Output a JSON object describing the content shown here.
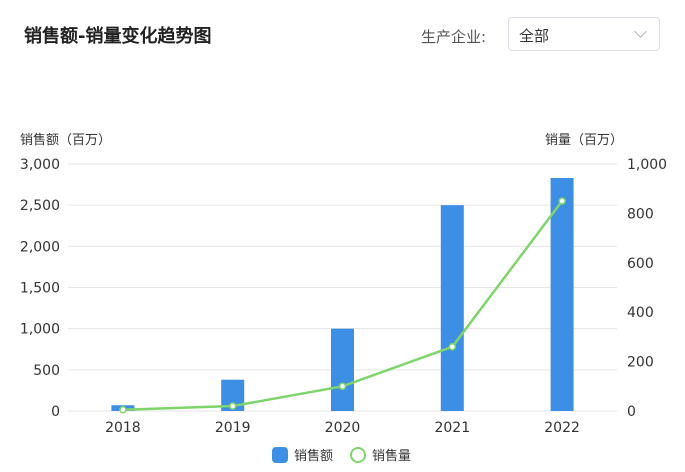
{
  "header": {
    "title": "销售额-销量变化趋势图",
    "filter_label": "生产企业:",
    "filter_value": "全部"
  },
  "chart_data": {
    "type": "bar",
    "title": "销售额-销量变化趋势图",
    "categories": [
      "2018",
      "2019",
      "2020",
      "2021",
      "2022"
    ],
    "series": [
      {
        "name": "销售额",
        "type": "bar",
        "axis": "left",
        "color": "#3d8fe6",
        "values": [
          70,
          380,
          1000,
          2500,
          2830
        ]
      },
      {
        "name": "销售量",
        "type": "line",
        "axis": "right",
        "color": "#7fd46b",
        "values": [
          5,
          20,
          100,
          260,
          850
        ]
      }
    ],
    "y_left": {
      "label": "销售额（百万）",
      "ylim": [
        0,
        3000
      ],
      "ticks": [
        "0",
        "500",
        "1,000",
        "1,500",
        "2,000",
        "2,500",
        "3,000"
      ],
      "tick_values": [
        0,
        500,
        1000,
        1500,
        2000,
        2500,
        3000
      ]
    },
    "y_right": {
      "label": "销量（百万）",
      "ylim": [
        0,
        1000
      ],
      "ticks": [
        "0",
        "200",
        "400",
        "600",
        "800",
        "1,000"
      ],
      "tick_values": [
        0,
        200,
        400,
        600,
        800,
        1000
      ]
    },
    "grid": true,
    "legend_position": "bottom"
  }
}
